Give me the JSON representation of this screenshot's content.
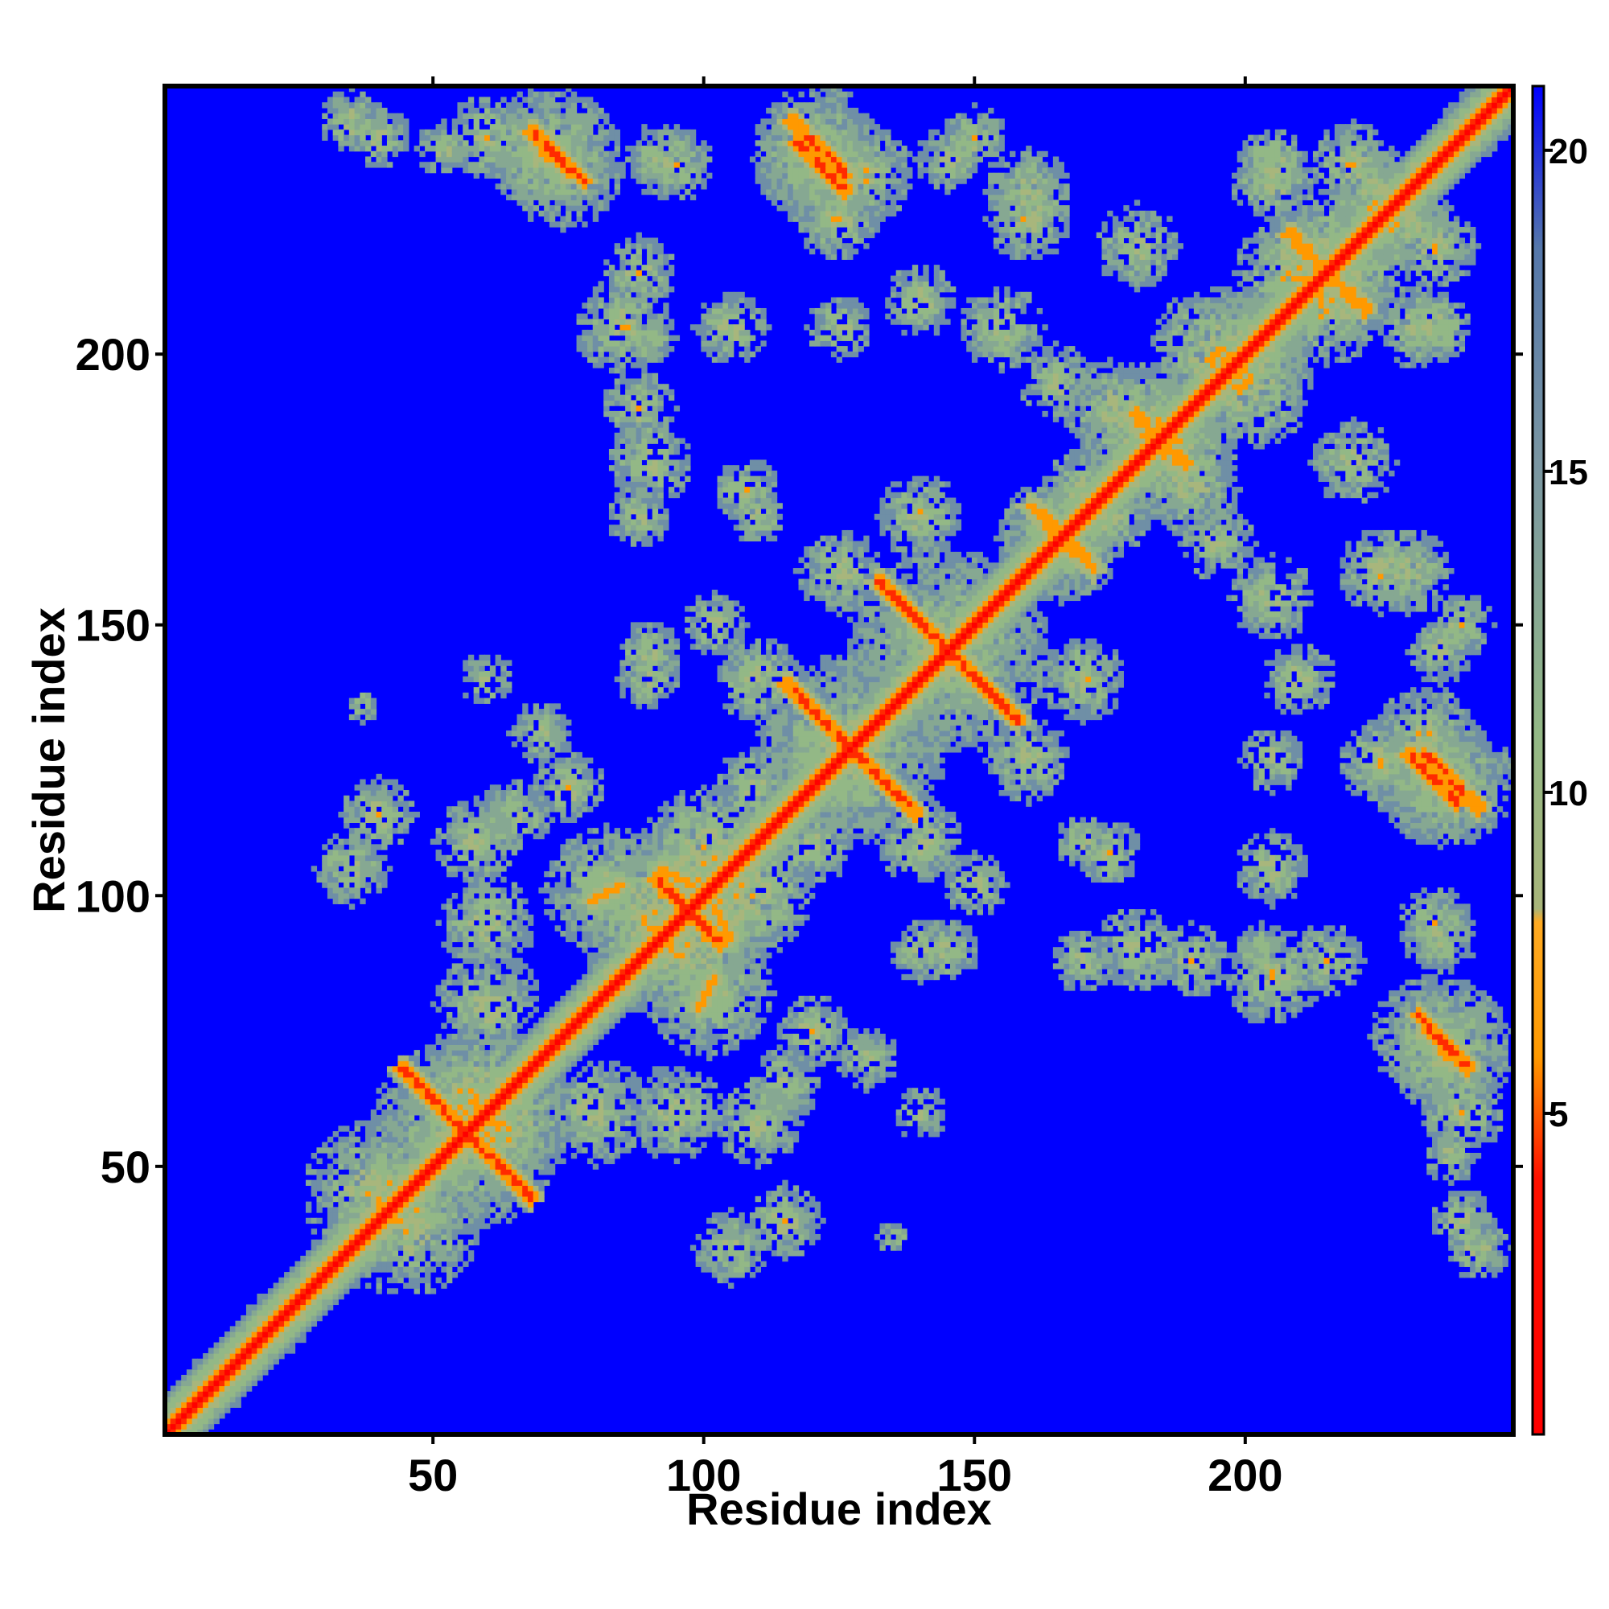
{
  "chart_data": {
    "type": "heatmap",
    "title": "",
    "xlabel": "Residue index",
    "ylabel": "Residue index",
    "n_residues": 249,
    "xlim": [
      1,
      249
    ],
    "ylim": [
      1,
      249
    ],
    "x_ticks": [
      50,
      100,
      150,
      200
    ],
    "y_ticks": [
      50,
      100,
      150,
      200
    ],
    "x_tick_labels": [
      "50",
      "100",
      "150",
      "200"
    ],
    "y_tick_labels": [
      "50",
      "100",
      "150",
      "200"
    ],
    "value_description": "pairwise distance between residues; small values on diagonal and contact lines",
    "colorbar": {
      "range": [
        0,
        21
      ],
      "ticks": [
        5,
        10,
        15,
        20
      ],
      "tick_labels": [
        "5",
        "10",
        "15",
        "20"
      ],
      "colors": [
        "#ff0000",
        "#ff9900",
        "#93b886",
        "#5577aa",
        "#0000ff"
      ]
    },
    "contact_features": [
      {
        "kind": "main_diagonal",
        "i_range": [
          1,
          249
        ],
        "value": 1
      },
      {
        "kind": "antiparallel",
        "center": [
          56,
          56
        ],
        "half_length": 12,
        "value": 4
      },
      {
        "kind": "antiparallel",
        "center": [
          97,
          97
        ],
        "half_length": 6,
        "value": 4
      },
      {
        "kind": "antiparallel",
        "center": [
          127,
          127
        ],
        "half_length": 12,
        "value": 4
      },
      {
        "kind": "antiparallel",
        "center": [
          145,
          145
        ],
        "half_length": 13,
        "value": 4
      },
      {
        "kind": "antiparallel",
        "center": [
          166,
          166
        ],
        "half_length": 6,
        "value": 5
      },
      {
        "kind": "antiparallel",
        "center": [
          215,
          215
        ],
        "half_length": 7,
        "value": 5
      },
      {
        "kind": "antiparallel",
        "center": [
          184,
          184
        ],
        "half_length": 5,
        "value": 5
      },
      {
        "kind": "parallel",
        "start": [
          70,
          238
        ],
        "end": [
          78,
          232
        ],
        "value": 4
      },
      {
        "kind": "parallel",
        "start": [
          117,
          239
        ],
        "end": [
          126,
          230
        ],
        "value": 4
      },
      {
        "kind": "parallel",
        "start": [
          234,
          76
        ],
        "end": [
          241,
          68
        ],
        "value": 4
      },
      {
        "kind": "parallel",
        "start": [
          233,
          126
        ],
        "end": [
          243,
          116
        ],
        "value": 4
      },
      {
        "kind": "parallel",
        "start": [
          85,
          102
        ],
        "end": [
          79,
          99
        ],
        "value": 6
      },
      {
        "kind": "parallel",
        "start": [
          99,
          103
        ],
        "end": [
          105,
          92
        ],
        "value": 6
      }
    ]
  }
}
